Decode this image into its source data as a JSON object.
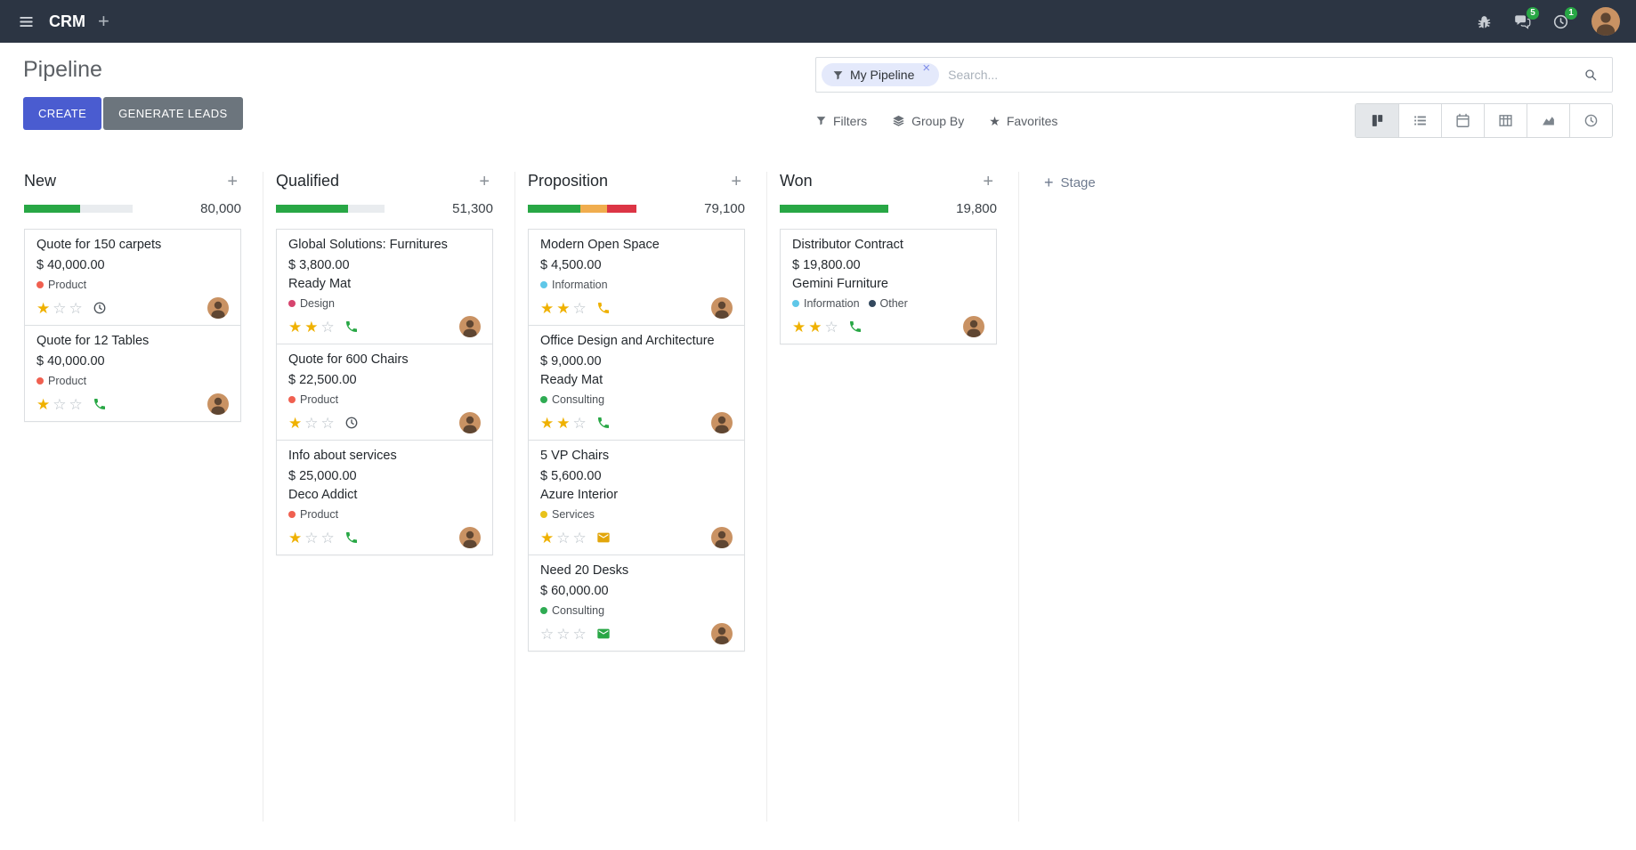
{
  "colors": {
    "navbar-bg": "#2c3543",
    "accent": "#4a5cd0",
    "secondary": "#6c757d",
    "success": "#28a745",
    "warning": "#f0ad4e",
    "danger": "#dc3545",
    "star": "#efb100",
    "progress-empty": "#e9ecef"
  },
  "navbar": {
    "app_name": "CRM",
    "messages_badge": "5",
    "activities_badge": "1"
  },
  "control_panel": {
    "title": "Pipeline",
    "create_label": "CREATE",
    "generate_leads_label": "GENERATE LEADS",
    "search": {
      "facet_label": "My Pipeline",
      "remove_facet": "×",
      "placeholder": "Search..."
    },
    "filters_label": "Filters",
    "group_by_label": "Group By",
    "favorites_label": "Favorites",
    "views": [
      "kanban",
      "list",
      "calendar",
      "pivot",
      "graph",
      "activity"
    ],
    "active_view": "kanban"
  },
  "kanban": {
    "add_stage_label": "Stage",
    "columns": [
      {
        "name": "New",
        "total": "80,000",
        "progress": [
          {
            "color": "#28a745",
            "pct": 52
          },
          {
            "color": "#e9ecef",
            "pct": 48
          }
        ],
        "cards": [
          {
            "title": "Quote for 150 carpets",
            "amount": "$ 40,000.00",
            "tags": [
              {
                "label": "Product",
                "color": "#f06050"
              }
            ],
            "stars": 1,
            "activity_icon": "clock",
            "activity_color": "#495057"
          },
          {
            "title": "Quote for 12 Tables",
            "amount": "$ 40,000.00",
            "tags": [
              {
                "label": "Product",
                "color": "#f06050"
              }
            ],
            "stars": 1,
            "activity_icon": "phone",
            "activity_color": "#28a745"
          }
        ]
      },
      {
        "name": "Qualified",
        "total": "51,300",
        "progress": [
          {
            "color": "#28a745",
            "pct": 66
          },
          {
            "color": "#e9ecef",
            "pct": 34
          }
        ],
        "cards": [
          {
            "title": "Global Solutions: Furnitures",
            "amount": "$ 3,800.00",
            "partner": "Ready Mat",
            "tags": [
              {
                "label": "Design",
                "color": "#d6446e"
              }
            ],
            "stars": 2,
            "activity_icon": "phone",
            "activity_color": "#28a745"
          },
          {
            "title": "Quote for 600 Chairs",
            "amount": "$ 22,500.00",
            "tags": [
              {
                "label": "Product",
                "color": "#f06050"
              }
            ],
            "stars": 1,
            "activity_icon": "clock",
            "activity_color": "#495057"
          },
          {
            "title": "Info about services",
            "amount": "$ 25,000.00",
            "partner": "Deco Addict",
            "tags": [
              {
                "label": "Product",
                "color": "#f06050"
              }
            ],
            "stars": 1,
            "activity_icon": "phone",
            "activity_color": "#28a745"
          }
        ]
      },
      {
        "name": "Proposition",
        "total": "79,100",
        "progress": [
          {
            "color": "#28a745",
            "pct": 48
          },
          {
            "color": "#f0ad4e",
            "pct": 25
          },
          {
            "color": "#dc3545",
            "pct": 27
          }
        ],
        "cards": [
          {
            "title": "Modern Open Space",
            "amount": "$ 4,500.00",
            "tags": [
              {
                "label": "Information",
                "color": "#5fc7e8"
              }
            ],
            "stars": 2,
            "activity_icon": "phone",
            "activity_color": "#eeb000"
          },
          {
            "title": "Office Design and Architecture",
            "amount": "$ 9,000.00",
            "partner": "Ready Mat",
            "tags": [
              {
                "label": "Consulting",
                "color": "#2fab53"
              }
            ],
            "stars": 2,
            "activity_icon": "phone",
            "activity_color": "#28a745"
          },
          {
            "title": "5 VP Chairs",
            "amount": "$ 5,600.00",
            "partner": "Azure Interior",
            "tags": [
              {
                "label": "Services",
                "color": "#e8c21a"
              }
            ],
            "stars": 1,
            "activity_icon": "envelope",
            "activity_color": "#e2a60c"
          },
          {
            "title": "Need 20 Desks",
            "amount": "$ 60,000.00",
            "tags": [
              {
                "label": "Consulting",
                "color": "#2fab53"
              }
            ],
            "stars": 0,
            "activity_icon": "envelope",
            "activity_color": "#28a745"
          }
        ]
      },
      {
        "name": "Won",
        "total": "19,800",
        "progress": [
          {
            "color": "#28a745",
            "pct": 100
          }
        ],
        "cards": [
          {
            "title": "Distributor Contract",
            "amount": "$ 19,800.00",
            "partner": "Gemini Furniture",
            "tags": [
              {
                "label": "Information",
                "color": "#5fc7e8"
              },
              {
                "label": "Other",
                "color": "#34495e"
              }
            ],
            "stars": 2,
            "activity_icon": "phone",
            "activity_color": "#28a745"
          }
        ]
      }
    ]
  }
}
